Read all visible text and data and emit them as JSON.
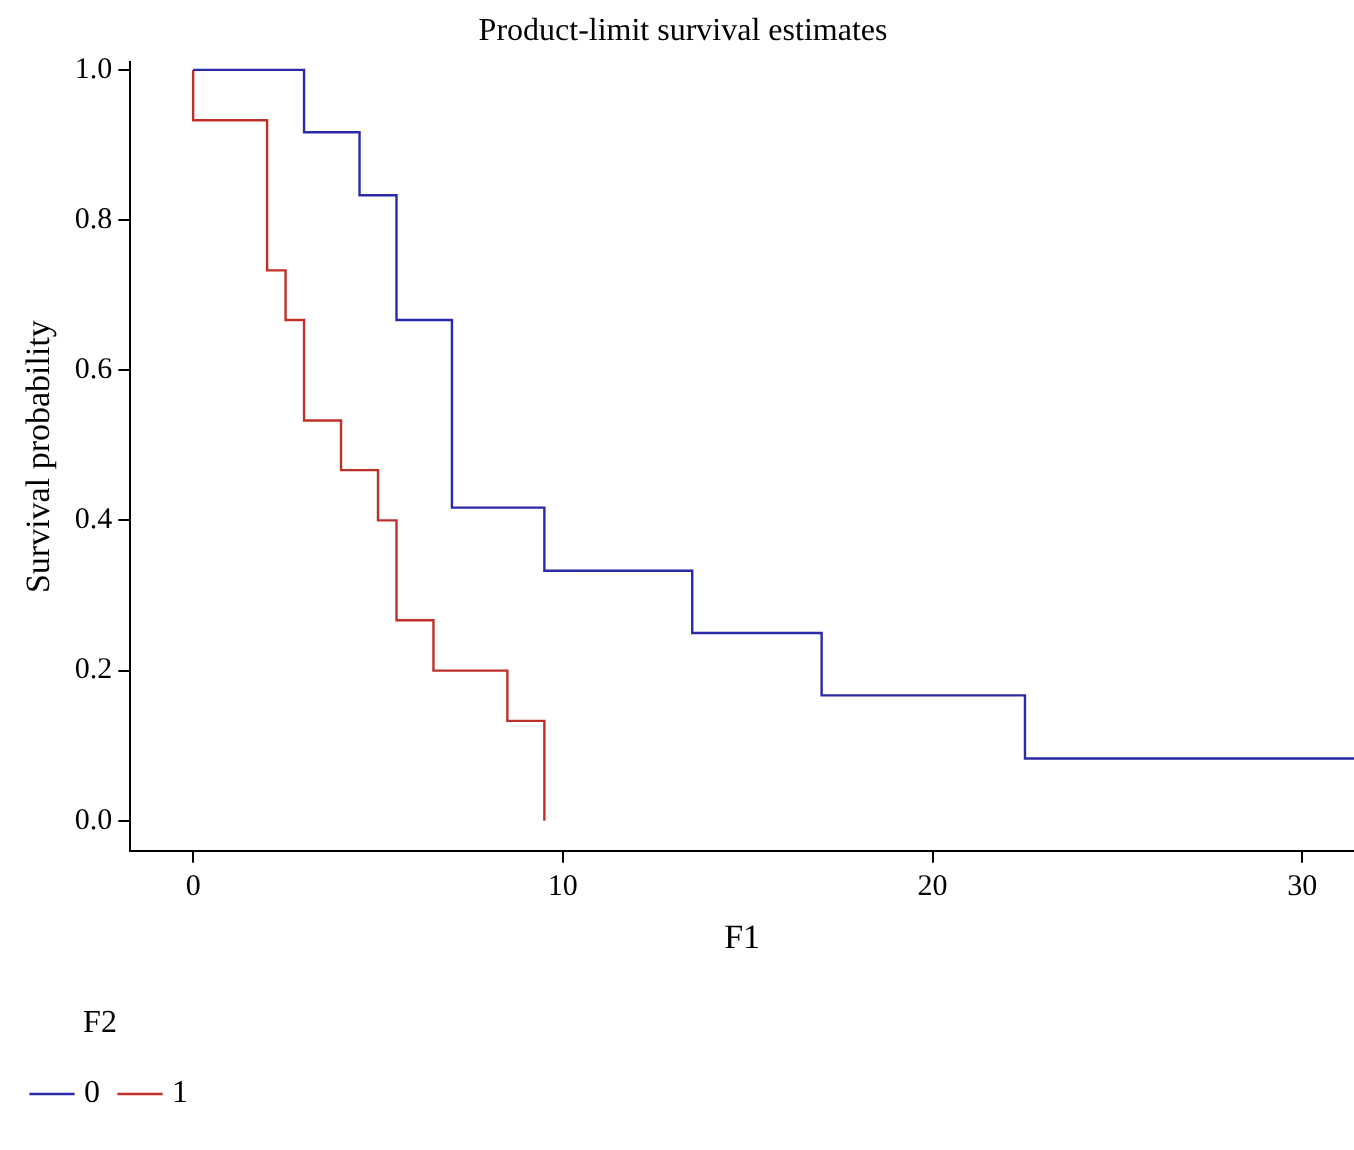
{
  "chart_data": {
    "type": "step",
    "title": "Product-limit survival estimates",
    "xlabel": "F1",
    "ylabel": "Survival probability",
    "legend_title": "F2",
    "legend": "bottom left",
    "grid": false,
    "marker": "none",
    "line_style": "solid",
    "xlim": [
      -1.7,
      31.4
    ],
    "xticks": [
      0,
      10,
      20,
      30
    ],
    "ylim": [
      -0.04,
      1.01
    ],
    "yticks": [
      {
        "value": 0,
        "label": "0.0"
      },
      {
        "value": 0.2,
        "label": "0.2"
      },
      {
        "value": 0.4,
        "label": "0.4"
      },
      {
        "value": 0.6,
        "label": "0.6"
      },
      {
        "value": 0.8,
        "label": "0.8"
      },
      {
        "value": 1,
        "label": "1.0"
      }
    ],
    "series": [
      {
        "name": "0",
        "color": "#2a2aa8",
        "x": [
          0,
          3,
          4.5,
          5.5,
          7,
          9.5,
          13.5,
          17,
          22.5,
          31.4
        ],
        "values": [
          1,
          0.917,
          0.833,
          0.667,
          0.417,
          0.333,
          0.25,
          0.167,
          0.083,
          0.083
        ]
      },
      {
        "name": "1",
        "color": "#c0302a",
        "x": [
          0,
          0,
          2,
          2.5,
          3,
          4,
          5,
          5.5,
          6.5,
          8.5,
          9.5
        ],
        "values": [
          1,
          0.933,
          0.733,
          0.667,
          0.533,
          0.467,
          0.4,
          0.267,
          0.2,
          0.133,
          0
        ]
      }
    ]
  }
}
